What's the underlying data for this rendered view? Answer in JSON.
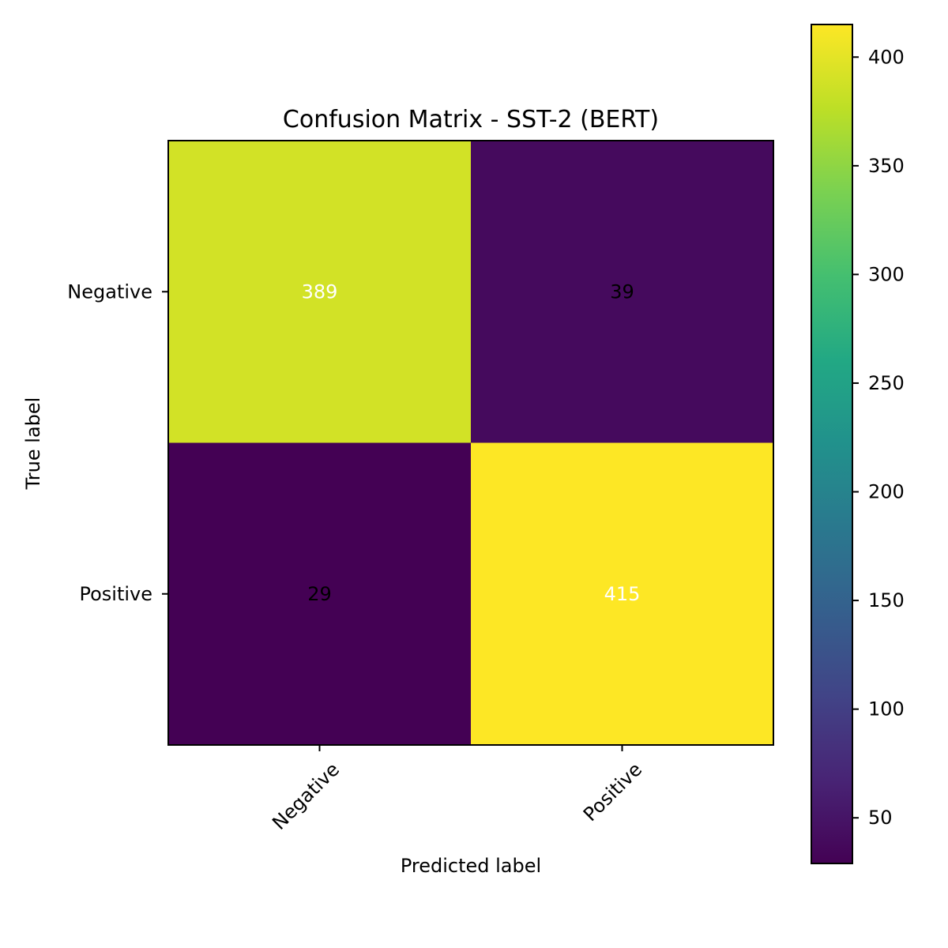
{
  "chart_data": {
    "type": "heatmap",
    "title": "Confusion Matrix - SST-2 (BERT)",
    "xlabel": "Predicted label",
    "ylabel": "True label",
    "x_categories": [
      "Negative",
      "Positive"
    ],
    "y_categories": [
      "Negative",
      "Positive"
    ],
    "values": [
      [
        389,
        39
      ],
      [
        29,
        415
      ]
    ],
    "cell_labels": [
      [
        "389",
        "39"
      ],
      [
        "29",
        "415"
      ]
    ],
    "cell_label_colors": [
      [
        "#ffffff",
        "#000000"
      ],
      [
        "#000000",
        "#ffffff"
      ]
    ],
    "colormap": "viridis",
    "color_range": [
      29,
      415
    ],
    "colorbar_ticks": [
      50,
      100,
      150,
      200,
      250,
      300,
      350,
      400
    ],
    "colorbar_tick_labels": [
      "50",
      "100",
      "150",
      "200",
      "250",
      "300",
      "350",
      "400"
    ],
    "x_tick_rotation": 45,
    "grid": false
  }
}
